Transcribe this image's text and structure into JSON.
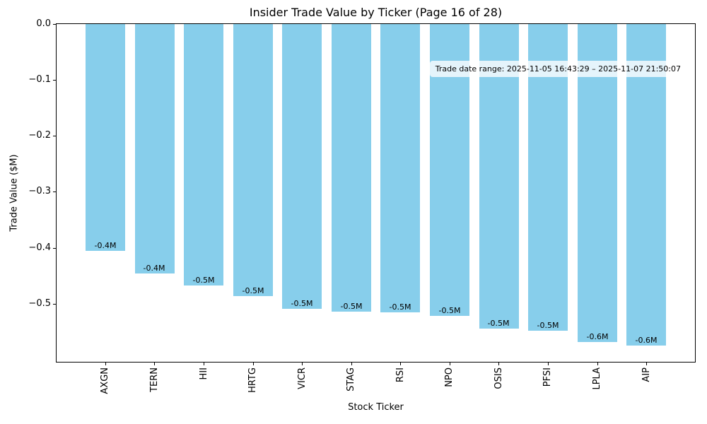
{
  "figure": {
    "background": "#ffffff"
  },
  "chart_data": {
    "type": "bar",
    "title": "Insider Trade Value by Ticker (Page 16 of 28)",
    "xlabel": "Stock Ticker",
    "ylabel": "Trade Value ($M)",
    "categories": [
      "AXGN",
      "TERN",
      "HII",
      "HRTG",
      "VICR",
      "STAG",
      "RSI",
      "NPO",
      "OSIS",
      "PFSI",
      "LPLA",
      "AIP"
    ],
    "values": [
      -0.406,
      -0.446,
      -0.468,
      -0.486,
      -0.509,
      -0.514,
      -0.516,
      -0.522,
      -0.545,
      -0.548,
      -0.569,
      -0.575
    ],
    "bar_labels": [
      "-0.4M",
      "-0.4M",
      "-0.5M",
      "-0.5M",
      "-0.5M",
      "-0.5M",
      "-0.5M",
      "-0.5M",
      "-0.5M",
      "-0.5M",
      "-0.6M",
      "-0.6M"
    ],
    "bar_color": "#87CEEB",
    "ylim": [
      -0.604,
      0
    ],
    "yticks": [
      0,
      -0.1,
      -0.2,
      -0.3,
      -0.4,
      -0.5
    ],
    "ytick_labels": [
      "0.0",
      "−0.1",
      "−0.2",
      "−0.3",
      "−0.4",
      "−0.5"
    ],
    "bar_width_frac": 0.8,
    "grid": false,
    "legend_position": "none",
    "annotation": "Trade date range: 2025-11-05 16:43:29 – 2025-11-07 21:50:07"
  }
}
